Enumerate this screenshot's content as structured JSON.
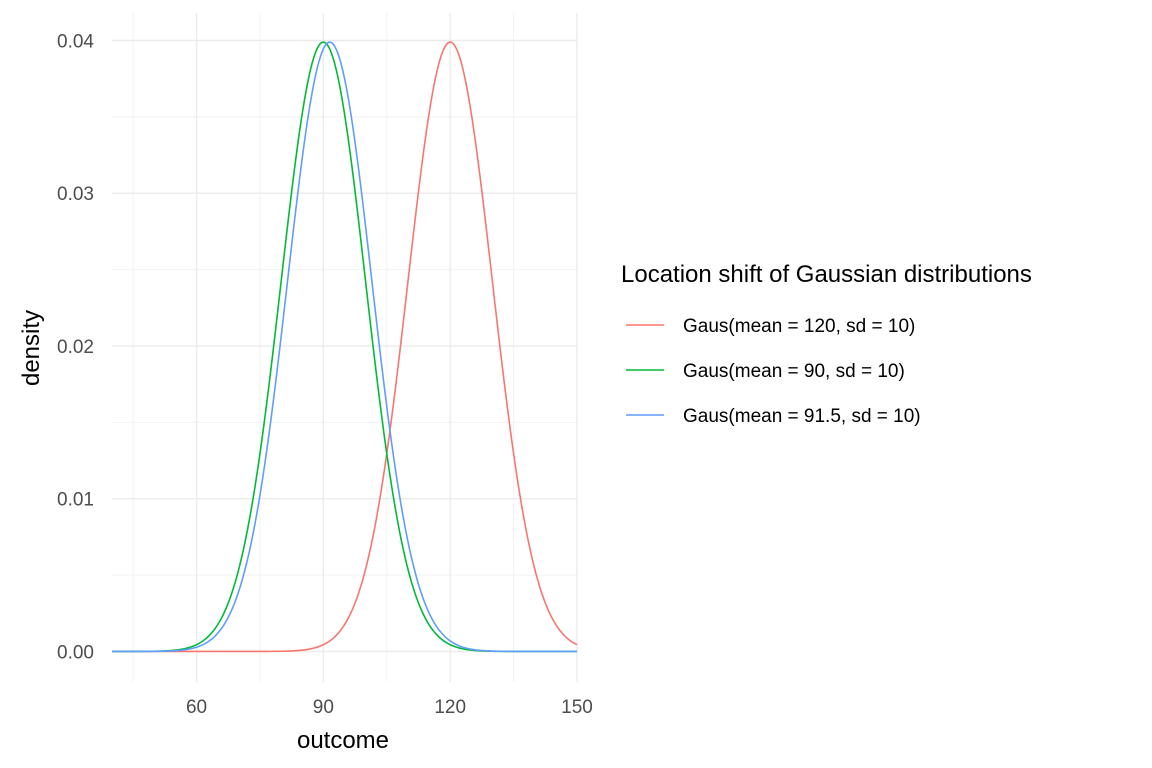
{
  "chart_data": {
    "type": "line",
    "xlabel": "outcome",
    "ylabel": "density",
    "xlim": [
      40,
      150
    ],
    "ylim": [
      -0.002,
      0.0418
    ],
    "x_ticks": [
      60,
      90,
      120,
      150
    ],
    "x_tick_labels": [
      "60",
      "90",
      "120",
      "150"
    ],
    "y_ticks": [
      0,
      0.01,
      0.02,
      0.03,
      0.04
    ],
    "y_tick_labels": [
      "0.00",
      "0.01",
      "0.02",
      "0.03",
      "0.04"
    ],
    "grid": true,
    "legend": {
      "title": "Location shift of Gaussian distributions",
      "placement": "right"
    },
    "series": [
      {
        "name": "Gaus(mean = 120, sd = 10)",
        "color": "#F8766D",
        "mean": 120,
        "sd": 10,
        "x_range": [
          40,
          150
        ]
      },
      {
        "name": "Gaus(mean = 90, sd = 10)",
        "color": "#00BA38",
        "mean": 90,
        "sd": 10,
        "x_range": [
          40,
          150
        ]
      },
      {
        "name": "Gaus(mean = 91.5, sd = 10)",
        "color": "#619CFF",
        "mean": 91.5,
        "sd": 10,
        "x_range": [
          40,
          150
        ]
      }
    ]
  }
}
